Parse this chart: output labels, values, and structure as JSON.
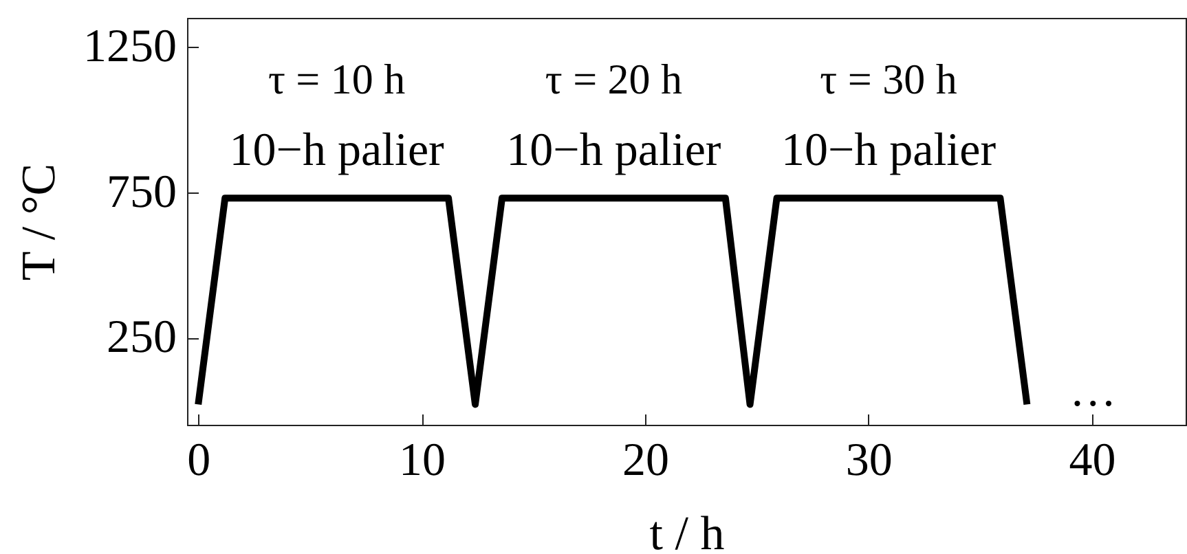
{
  "chart_data": {
    "type": "line",
    "xlabel": "t / h",
    "ylabel": "T / °C",
    "x": [
      0,
      1.2,
      11.2,
      12.4,
      13.6,
      23.6,
      24.7,
      25.9,
      35.9,
      37.1
    ],
    "series": [
      {
        "color": "#000000",
        "values": [
          20,
          730,
          730,
          20,
          730,
          730,
          20,
          730,
          730,
          20
        ]
      }
    ],
    "xlim": [
      -0.5,
      44.2
    ],
    "ylim": [
      -50,
      1350
    ],
    "xticks": [
      0,
      10,
      20,
      30,
      40
    ],
    "yticks": [
      250,
      750,
      1250
    ],
    "grid": false,
    "marker": "none",
    "line_style": "solid",
    "annotations": [
      "τ = 10 h",
      "τ = 20 h",
      "τ = 30 h",
      "10−h palier",
      "10−h palier",
      "10−h palier",
      "…"
    ]
  }
}
